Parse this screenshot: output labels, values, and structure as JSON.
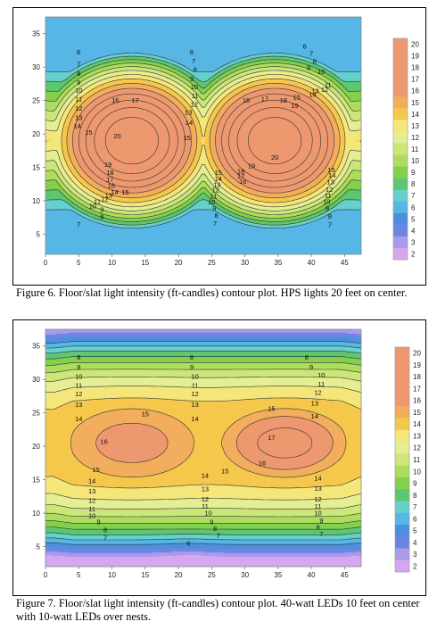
{
  "charts": [
    {
      "caption": "Figure 6.  Floor/slat light intensity (ft-candles) contour plot.  HPS lights 20 feet on center.",
      "chart_data": {
        "type": "heatmap",
        "subtype": "filled-contour",
        "units": "ft-candles",
        "xlim": [
          0,
          47.5
        ],
        "ylim": [
          2,
          37.5
        ],
        "x_ticks": [
          "0",
          "5",
          "10",
          "15",
          "20",
          "25",
          "30",
          "35",
          "40",
          "45"
        ],
        "y_ticks": [
          "5",
          "10",
          "15",
          "20",
          "25",
          "30",
          "35"
        ],
        "colorbar_levels": [
          "20",
          "19",
          "18",
          "17",
          "16",
          "15",
          "14",
          "13",
          "12",
          "11",
          "10",
          "9",
          "8",
          "7",
          "6",
          "5",
          "4",
          "3",
          "2"
        ],
        "contour_levels": [
          6,
          7,
          8,
          9,
          10,
          11,
          12,
          13,
          14,
          15,
          16,
          17,
          18,
          19,
          20
        ],
        "peaks": [
          {
            "x": 13,
            "y": 19,
            "value": 20.5
          },
          {
            "x": 34.5,
            "y": 19,
            "value": 20.5
          }
        ],
        "saddle": {
          "x": 23,
          "y": 19,
          "value": 14.8
        },
        "contour_labels": [
          {
            "text": "6",
            "x": 5,
            "y": 32.2
          },
          {
            "text": "7",
            "x": 5,
            "y": 30.4
          },
          {
            "text": "8",
            "x": 5,
            "y": 29
          },
          {
            "text": "9",
            "x": 5,
            "y": 27.7
          },
          {
            "text": "10",
            "x": 5,
            "y": 26.5
          },
          {
            "text": "11",
            "x": 5,
            "y": 25.2
          },
          {
            "text": "12",
            "x": 5,
            "y": 23.8
          },
          {
            "text": "13",
            "x": 5,
            "y": 22.4
          },
          {
            "text": "14",
            "x": 4.8,
            "y": 21.2
          },
          {
            "text": "15",
            "x": 6.5,
            "y": 20.2
          },
          {
            "text": "16",
            "x": 10.5,
            "y": 25
          },
          {
            "text": "17",
            "x": 13.5,
            "y": 25
          },
          {
            "text": "20",
            "x": 10.8,
            "y": 19.7
          },
          {
            "text": "19",
            "x": 9.4,
            "y": 15.4
          },
          {
            "text": "18",
            "x": 9.7,
            "y": 14.2
          },
          {
            "text": "17",
            "x": 9.7,
            "y": 13.2
          },
          {
            "text": "16",
            "x": 9.9,
            "y": 12.3
          },
          {
            "text": "15",
            "x": 12,
            "y": 11.3
          },
          {
            "text": "14",
            "x": 10.4,
            "y": 11.3
          },
          {
            "text": "13",
            "x": 9.5,
            "y": 10.8
          },
          {
            "text": "12",
            "x": 8.9,
            "y": 10.3
          },
          {
            "text": "11",
            "x": 7.8,
            "y": 9.9
          },
          {
            "text": "10",
            "x": 7.1,
            "y": 9.2
          },
          {
            "text": "9",
            "x": 8.5,
            "y": 8.7
          },
          {
            "text": "8",
            "x": 8.5,
            "y": 7.6
          },
          {
            "text": "7",
            "x": 5,
            "y": 6.5
          },
          {
            "text": "6",
            "x": 22,
            "y": 32.2
          },
          {
            "text": "7",
            "x": 22.3,
            "y": 30.9
          },
          {
            "text": "8",
            "x": 22.5,
            "y": 29.6
          },
          {
            "text": "9",
            "x": 22,
            "y": 28.2
          },
          {
            "text": "10",
            "x": 22.4,
            "y": 27
          },
          {
            "text": "11",
            "x": 22.5,
            "y": 25.7
          },
          {
            "text": "12",
            "x": 22.4,
            "y": 24.4
          },
          {
            "text": "13",
            "x": 21.5,
            "y": 23.2
          },
          {
            "text": "14",
            "x": 21.6,
            "y": 21.7
          },
          {
            "text": "15",
            "x": 21.3,
            "y": 19.4
          },
          {
            "text": "15",
            "x": 26,
            "y": 14.2
          },
          {
            "text": "14",
            "x": 26,
            "y": 13.3
          },
          {
            "text": "13",
            "x": 25.8,
            "y": 12.4
          },
          {
            "text": "12",
            "x": 25.6,
            "y": 11.6
          },
          {
            "text": "11",
            "x": 25.3,
            "y": 10.7
          },
          {
            "text": "10",
            "x": 25,
            "y": 9.8
          },
          {
            "text": "9",
            "x": 25.4,
            "y": 8.9
          },
          {
            "text": "8",
            "x": 25.7,
            "y": 7.8
          },
          {
            "text": "7",
            "x": 25.5,
            "y": 6.6
          },
          {
            "text": "16",
            "x": 30.2,
            "y": 25
          },
          {
            "text": "17",
            "x": 33,
            "y": 25.2
          },
          {
            "text": "18",
            "x": 35.8,
            "y": 25
          },
          {
            "text": "19",
            "x": 37.5,
            "y": 24.2
          },
          {
            "text": "20",
            "x": 34.5,
            "y": 16.5
          },
          {
            "text": "19",
            "x": 31,
            "y": 15.2
          },
          {
            "text": "18",
            "x": 29.4,
            "y": 14.4
          },
          {
            "text": "17",
            "x": 29.4,
            "y": 13.7
          },
          {
            "text": "16",
            "x": 29.7,
            "y": 12.9
          },
          {
            "text": "6",
            "x": 39,
            "y": 33.1
          },
          {
            "text": "7",
            "x": 40,
            "y": 32
          },
          {
            "text": "8",
            "x": 40.5,
            "y": 30.8
          },
          {
            "text": "9",
            "x": 39.6,
            "y": 29.9
          },
          {
            "text": "10",
            "x": 41.5,
            "y": 29.3
          },
          {
            "text": "11",
            "x": 42.5,
            "y": 27.3
          },
          {
            "text": "12",
            "x": 42,
            "y": 26.6
          },
          {
            "text": "13",
            "x": 40.6,
            "y": 26.4
          },
          {
            "text": "14",
            "x": 40.2,
            "y": 25.9
          },
          {
            "text": "15",
            "x": 37.8,
            "y": 25.5
          },
          {
            "text": "15",
            "x": 43,
            "y": 14.6
          },
          {
            "text": "14",
            "x": 43.1,
            "y": 13.8
          },
          {
            "text": "13",
            "x": 42.9,
            "y": 12.8
          },
          {
            "text": "12",
            "x": 42.7,
            "y": 11.7
          },
          {
            "text": "11",
            "x": 42.5,
            "y": 10.8
          },
          {
            "text": "10",
            "x": 42.3,
            "y": 9.9
          },
          {
            "text": "9",
            "x": 42.4,
            "y": 8.9
          },
          {
            "text": "8",
            "x": 42.8,
            "y": 7.7
          },
          {
            "text": "7",
            "x": 42.8,
            "y": 6.4
          }
        ]
      }
    },
    {
      "caption": "Figure 7.  Floor/slat light intensity (ft-candles) contour plot.  40-watt LEDs 10 feet on center with 10-watt LEDs over nests.",
      "chart_data": {
        "type": "heatmap",
        "subtype": "filled-contour",
        "units": "ft-candles",
        "xlim": [
          0,
          47.5
        ],
        "ylim": [
          2,
          37.5
        ],
        "x_ticks": [
          "0",
          "5",
          "10",
          "15",
          "20",
          "25",
          "30",
          "35",
          "40",
          "45"
        ],
        "y_ticks": [
          "5",
          "10",
          "15",
          "20",
          "25",
          "30",
          "35"
        ],
        "colorbar_levels": [
          "20",
          "19",
          "18",
          "17",
          "16",
          "15",
          "14",
          "13",
          "12",
          "11",
          "10",
          "9",
          "8",
          "7",
          "6",
          "5",
          "4",
          "3",
          "2"
        ],
        "contour_levels": [
          6,
          7,
          8,
          9,
          10,
          11,
          12,
          13,
          14,
          15,
          16,
          17
        ],
        "peaks": [
          {
            "x": 13,
            "y": 20.5,
            "value": 16.6
          },
          {
            "x": 36,
            "y": 20.5,
            "value": 17.5
          }
        ],
        "plateau": {
          "y_center": 20.5,
          "value": 14.5
        },
        "contour_labels": [
          {
            "text": "8",
            "x": 5,
            "y": 33.3
          },
          {
            "text": "9",
            "x": 5,
            "y": 31.8
          },
          {
            "text": "10",
            "x": 5,
            "y": 30.4
          },
          {
            "text": "11",
            "x": 5,
            "y": 29.1
          },
          {
            "text": "12",
            "x": 5,
            "y": 27.8
          },
          {
            "text": "13",
            "x": 5,
            "y": 26.2
          },
          {
            "text": "14",
            "x": 5,
            "y": 24.1
          },
          {
            "text": "8",
            "x": 22,
            "y": 33.3
          },
          {
            "text": "9",
            "x": 22,
            "y": 31.8
          },
          {
            "text": "10",
            "x": 22.5,
            "y": 30.4
          },
          {
            "text": "11",
            "x": 22.5,
            "y": 29.1
          },
          {
            "text": "12",
            "x": 22.5,
            "y": 27.8
          },
          {
            "text": "13",
            "x": 22.5,
            "y": 26.2
          },
          {
            "text": "14",
            "x": 22.5,
            "y": 24.1
          },
          {
            "text": "8",
            "x": 39.3,
            "y": 33.3
          },
          {
            "text": "9",
            "x": 40,
            "y": 31.8
          },
          {
            "text": "10",
            "x": 41.5,
            "y": 30.6
          },
          {
            "text": "11",
            "x": 41.5,
            "y": 29.3
          },
          {
            "text": "12",
            "x": 41,
            "y": 28
          },
          {
            "text": "13",
            "x": 40.5,
            "y": 26.4
          },
          {
            "text": "14",
            "x": 40.5,
            "y": 24.5
          },
          {
            "text": "15",
            "x": 15,
            "y": 24.8
          },
          {
            "text": "16",
            "x": 8.8,
            "y": 20.7
          },
          {
            "text": "15",
            "x": 7.6,
            "y": 16.5
          },
          {
            "text": "15",
            "x": 34,
            "y": 25.6
          },
          {
            "text": "17",
            "x": 34,
            "y": 21.3
          },
          {
            "text": "16",
            "x": 32.6,
            "y": 17.5
          },
          {
            "text": "15",
            "x": 27,
            "y": 16.3
          },
          {
            "text": "14",
            "x": 7,
            "y": 14.8
          },
          {
            "text": "13",
            "x": 7,
            "y": 13.3
          },
          {
            "text": "12",
            "x": 7,
            "y": 11.9
          },
          {
            "text": "11",
            "x": 7,
            "y": 10.6
          },
          {
            "text": "10",
            "x": 7,
            "y": 9.6
          },
          {
            "text": "9",
            "x": 8,
            "y": 8.7
          },
          {
            "text": "8",
            "x": 9,
            "y": 7.5
          },
          {
            "text": "7",
            "x": 9,
            "y": 6.3
          },
          {
            "text": "14",
            "x": 24,
            "y": 15.6
          },
          {
            "text": "13",
            "x": 24,
            "y": 13.6
          },
          {
            "text": "12",
            "x": 24,
            "y": 12.1
          },
          {
            "text": "11",
            "x": 24,
            "y": 11
          },
          {
            "text": "10",
            "x": 24.5,
            "y": 10
          },
          {
            "text": "9",
            "x": 25,
            "y": 8.7
          },
          {
            "text": "8",
            "x": 25.5,
            "y": 7.7
          },
          {
            "text": "7",
            "x": 26,
            "y": 6.6
          },
          {
            "text": "6",
            "x": 21.5,
            "y": 5.5
          },
          {
            "text": "14",
            "x": 41,
            "y": 15.2
          },
          {
            "text": "13",
            "x": 41,
            "y": 13.7
          },
          {
            "text": "12",
            "x": 41,
            "y": 12.1
          },
          {
            "text": "11",
            "x": 41,
            "y": 11
          },
          {
            "text": "10",
            "x": 41,
            "y": 10
          },
          {
            "text": "9",
            "x": 41.5,
            "y": 8.9
          },
          {
            "text": "8",
            "x": 41,
            "y": 7.9
          },
          {
            "text": "7",
            "x": 41.5,
            "y": 6.9
          }
        ]
      }
    }
  ],
  "palette": [
    {
      "value": 2,
      "color": "#d6a6f0"
    },
    {
      "value": 3,
      "color": "#a99bea"
    },
    {
      "value": 4,
      "color": "#6b86e2"
    },
    {
      "value": 5,
      "color": "#4b90de"
    },
    {
      "value": 6,
      "color": "#56b6e6"
    },
    {
      "value": 7,
      "color": "#66d0cc"
    },
    {
      "value": 8,
      "color": "#5cc670"
    },
    {
      "value": 9,
      "color": "#82d04e"
    },
    {
      "value": 10,
      "color": "#aedd5e"
    },
    {
      "value": 11,
      "color": "#cce67a"
    },
    {
      "value": 12,
      "color": "#e4ee92"
    },
    {
      "value": 13,
      "color": "#f5e67a"
    },
    {
      "value": 14,
      "color": "#f5c84c"
    },
    {
      "value": 15,
      "color": "#f2ae5c"
    },
    {
      "value": 16,
      "color": "#ee9870"
    },
    {
      "value": 20,
      "color": "#ee9870"
    }
  ]
}
